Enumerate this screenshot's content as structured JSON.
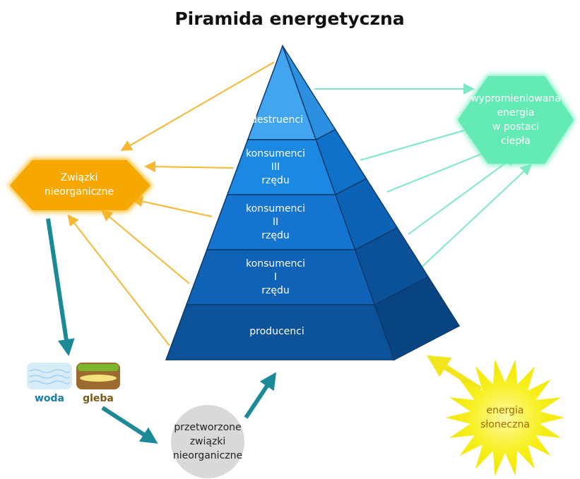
{
  "title": "Piramida energetyczna",
  "pyramid": {
    "levels": [
      {
        "lines": [
          "destruenci"
        ]
      },
      {
        "lines": [
          "konsumenci",
          "III",
          "rzędu"
        ]
      },
      {
        "lines": [
          "konsumenci",
          "II",
          "rzędu"
        ]
      },
      {
        "lines": [
          "konsumenci",
          "I",
          "rzędu"
        ]
      },
      {
        "lines": [
          "producenci"
        ]
      }
    ]
  },
  "nodes": {
    "inorganic": {
      "lines": [
        "Związki",
        "nieorganiczne"
      ]
    },
    "heat": {
      "lines": [
        "wypromieniowana",
        "energia",
        "w postaci",
        "ciepła"
      ]
    },
    "water": "woda",
    "soil": "gleba",
    "processed": {
      "lines": [
        "przetworzone",
        "związki",
        "nieorganiczne"
      ]
    },
    "sun": {
      "lines": [
        "energia",
        "słoneczna"
      ]
    }
  }
}
